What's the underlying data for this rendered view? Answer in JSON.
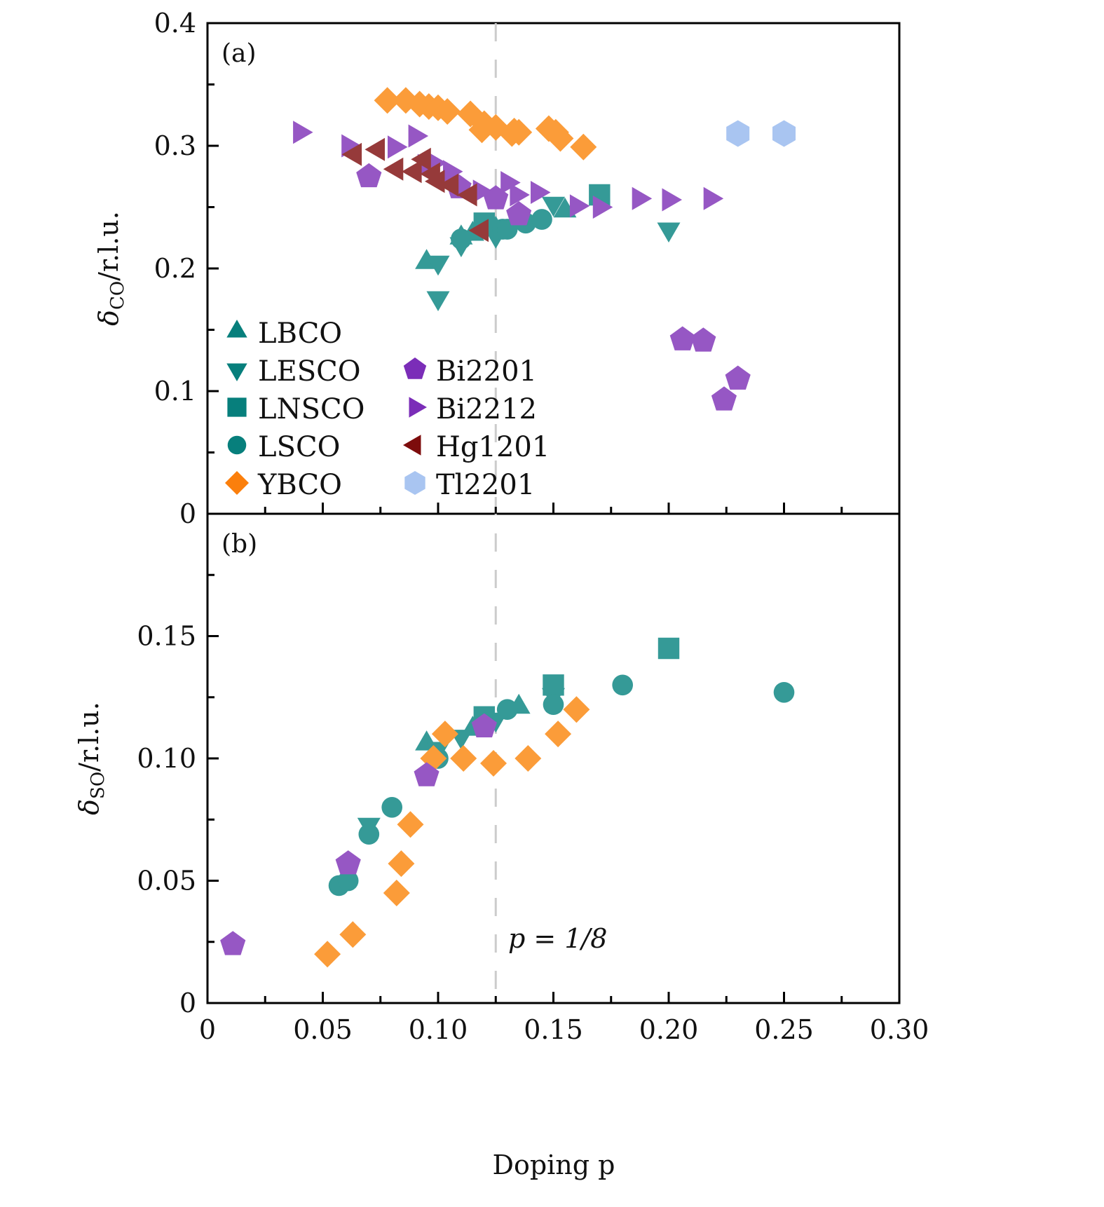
{
  "chart_data": {
    "type": "scatter",
    "xlabel": "Doping p",
    "x_range": [
      0,
      0.3
    ],
    "x_ticks": [
      "0",
      "0.05",
      "0.10",
      "0.15",
      "0.20",
      "0.25",
      "0.30"
    ],
    "x_tick_values": [
      0,
      0.05,
      0.1,
      0.15,
      0.2,
      0.25,
      0.3
    ],
    "reference_line": {
      "x": 0.125,
      "label": "p = 1/8",
      "style": "dashed",
      "color": "#cccccc"
    },
    "series_styles": {
      "LBCO": {
        "marker": "triangle-up",
        "color": "#359a97",
        "legend_color": "#077f7c"
      },
      "LESCO": {
        "marker": "triangle-down",
        "color": "#359a97",
        "legend_color": "#077f7c"
      },
      "LNSCO": {
        "marker": "square",
        "color": "#359a97",
        "legend_color": "#077f7c"
      },
      "LSCO": {
        "marker": "circle",
        "color": "#359a97",
        "legend_color": "#077f7c"
      },
      "YBCO": {
        "marker": "diamond",
        "color": "#fb9c39",
        "legend_color": "#fb7f0c"
      },
      "Bi2201": {
        "marker": "pentagon",
        "color": "#9657c4",
        "legend_color": "#7b2db8"
      },
      "Bi2212": {
        "marker": "triangle-right",
        "color": "#9657c4",
        "legend_color": "#7b2db8"
      },
      "Hg1201": {
        "marker": "triangle-left",
        "color": "#963a3a",
        "legend_color": "#7d0c0c"
      },
      "Tl2201": {
        "marker": "hexagon",
        "color": "#a9c5f1",
        "legend_color": "#a9c5f1"
      }
    },
    "legend": {
      "placement": "lower-left",
      "columns": [
        [
          "LBCO",
          "LESCO",
          "LNSCO",
          "LSCO",
          "YBCO"
        ],
        [
          "Bi2201",
          "Bi2212",
          "Hg1201",
          "Tl2201"
        ]
      ]
    },
    "panels": [
      {
        "label": "(a)",
        "ylabel": "δCO/r.l.u.",
        "ylabel_main": "δ",
        "ylabel_sub": "CO",
        "ylabel_tail": "/r.l.u.",
        "y_range": [
          0,
          0.4
        ],
        "y_ticks": [
          "0",
          "0.1",
          "0.2",
          "0.3",
          "0.4"
        ],
        "y_tick_values": [
          0,
          0.1,
          0.2,
          0.3,
          0.4
        ],
        "series": [
          {
            "name": "LBCO",
            "points": [
              [
                0.095,
                0.205
              ],
              [
                0.11,
                0.225
              ],
              [
                0.115,
                0.228
              ],
              [
                0.125,
                0.232
              ],
              [
                0.155,
                0.247
              ]
            ]
          },
          {
            "name": "LESCO",
            "points": [
              [
                0.1,
                0.205
              ],
              [
                0.1,
                0.176
              ],
              [
                0.11,
                0.22
              ],
              [
                0.125,
                0.227
              ],
              [
                0.15,
                0.253
              ],
              [
                0.2,
                0.232
              ]
            ]
          },
          {
            "name": "LNSCO",
            "points": [
              [
                0.12,
                0.237
              ],
              [
                0.17,
                0.26
              ]
            ]
          },
          {
            "name": "LSCO",
            "points": [
              [
                0.11,
                0.224
              ],
              [
                0.128,
                0.232
              ],
              [
                0.13,
                0.232
              ],
              [
                0.138,
                0.237
              ],
              [
                0.145,
                0.24
              ]
            ]
          },
          {
            "name": "YBCO",
            "points": [
              [
                0.078,
                0.337
              ],
              [
                0.086,
                0.337
              ],
              [
                0.092,
                0.334
              ],
              [
                0.096,
                0.332
              ],
              [
                0.1,
                0.331
              ],
              [
                0.104,
                0.328
              ],
              [
                0.114,
                0.326
              ],
              [
                0.119,
                0.313
              ],
              [
                0.12,
                0.318
              ],
              [
                0.125,
                0.315
              ],
              [
                0.132,
                0.31
              ],
              [
                0.133,
                0.312
              ],
              [
                0.135,
                0.311
              ],
              [
                0.148,
                0.314
              ],
              [
                0.151,
                0.311
              ],
              [
                0.153,
                0.306
              ],
              [
                0.163,
                0.299
              ]
            ]
          },
          {
            "name": "Bi2201",
            "points": [
              [
                0.07,
                0.275
              ],
              [
                0.109,
                0.266
              ],
              [
                0.125,
                0.257
              ],
              [
                0.135,
                0.244
              ],
              [
                0.206,
                0.142
              ],
              [
                0.215,
                0.141
              ],
              [
                0.224,
                0.093
              ],
              [
                0.23,
                0.11
              ]
            ]
          },
          {
            "name": "Bi2212",
            "points": [
              [
                0.04,
                0.311
              ],
              [
                0.061,
                0.3
              ],
              [
                0.081,
                0.299
              ],
              [
                0.09,
                0.308
              ],
              [
                0.094,
                0.284
              ],
              [
                0.098,
                0.286
              ],
              [
                0.105,
                0.279
              ],
              [
                0.118,
                0.263
              ],
              [
                0.13,
                0.27
              ],
              [
                0.134,
                0.26
              ],
              [
                0.143,
                0.262
              ],
              [
                0.16,
                0.251
              ],
              [
                0.17,
                0.25
              ],
              [
                0.187,
                0.257
              ],
              [
                0.2,
                0.256
              ],
              [
                0.218,
                0.257
              ]
            ]
          },
          {
            "name": "Hg1201",
            "points": [
              [
                0.064,
                0.293
              ],
              [
                0.074,
                0.297
              ],
              [
                0.082,
                0.281
              ],
              [
                0.09,
                0.279
              ],
              [
                0.094,
                0.289
              ],
              [
                0.098,
                0.277
              ],
              [
                0.1,
                0.271
              ],
              [
                0.106,
                0.268
              ],
              [
                0.114,
                0.26
              ],
              [
                0.119,
                0.231
              ]
            ]
          },
          {
            "name": "Tl2201",
            "points": [
              [
                0.23,
                0.31
              ],
              [
                0.25,
                0.31
              ]
            ]
          }
        ]
      },
      {
        "label": "(b)",
        "ylabel": "δSO/r.l.u.",
        "ylabel_main": "δ",
        "ylabel_sub": "SO",
        "ylabel_tail": "/r.l.u.",
        "y_range": [
          0,
          0.2
        ],
        "y_ticks": [
          "0",
          "0.05",
          "0.10",
          "0.15"
        ],
        "y_tick_values": [
          0,
          0.05,
          0.1,
          0.15
        ],
        "series": [
          {
            "name": "LBCO",
            "points": [
              [
                0.095,
                0.106
              ],
              [
                0.115,
                0.112
              ],
              [
                0.135,
                0.121
              ]
            ]
          },
          {
            "name": "LESCO",
            "points": [
              [
                0.07,
                0.073
              ],
              [
                0.1,
                0.104
              ],
              [
                0.11,
                0.109
              ],
              [
                0.125,
                0.116
              ],
              [
                0.15,
                0.126
              ]
            ]
          },
          {
            "name": "LNSCO",
            "points": [
              [
                0.12,
                0.117
              ],
              [
                0.15,
                0.13
              ],
              [
                0.2,
                0.145
              ]
            ]
          },
          {
            "name": "LSCO",
            "points": [
              [
                0.057,
                0.048
              ],
              [
                0.061,
                0.05
              ],
              [
                0.07,
                0.069
              ],
              [
                0.08,
                0.08
              ],
              [
                0.1,
                0.1
              ],
              [
                0.13,
                0.12
              ],
              [
                0.15,
                0.122
              ],
              [
                0.18,
                0.13
              ],
              [
                0.25,
                0.127
              ]
            ]
          },
          {
            "name": "YBCO",
            "points": [
              [
                0.052,
                0.02
              ],
              [
                0.063,
                0.028
              ],
              [
                0.082,
                0.045
              ],
              [
                0.084,
                0.057
              ],
              [
                0.088,
                0.073
              ],
              [
                0.098,
                0.1
              ],
              [
                0.103,
                0.11
              ],
              [
                0.111,
                0.1
              ],
              [
                0.124,
                0.098
              ],
              [
                0.139,
                0.1
              ],
              [
                0.152,
                0.11
              ],
              [
                0.16,
                0.12
              ]
            ]
          },
          {
            "name": "Bi2201",
            "points": [
              [
                0.011,
                0.024
              ],
              [
                0.061,
                0.057
              ],
              [
                0.095,
                0.093
              ],
              [
                0.12,
                0.113
              ]
            ]
          },
          {
            "name": "Bi2212",
            "points": []
          },
          {
            "name": "Hg1201",
            "points": []
          },
          {
            "name": "Tl2201",
            "points": []
          }
        ]
      }
    ]
  }
}
